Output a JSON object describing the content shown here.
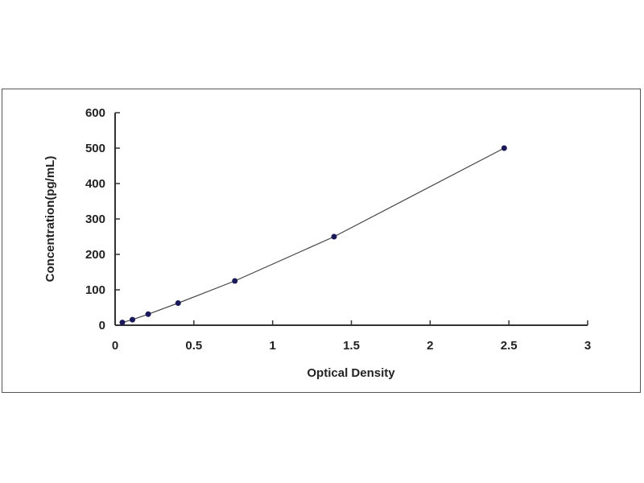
{
  "chart_data": {
    "type": "scatter",
    "xlabel": "Optical Density",
    "ylabel": "Concentration(pg/mL)",
    "xlim": [
      0,
      3
    ],
    "ylim": [
      0,
      600
    ],
    "xticks": [
      "0",
      "0.5",
      "1",
      "1.5",
      "2",
      "2.5",
      "3"
    ],
    "yticks": [
      "0",
      "100",
      "200",
      "300",
      "400",
      "500",
      "600"
    ],
    "grid": false,
    "trendline": true,
    "marker_color": "#1a1a5a",
    "line_color": "#444444",
    "series": [
      {
        "x": [
          0.046,
          0.11,
          0.21,
          0.4,
          0.76,
          1.39,
          2.47
        ],
        "y": [
          7.8,
          15.6,
          31.25,
          62.5,
          125,
          250,
          500
        ]
      }
    ]
  }
}
